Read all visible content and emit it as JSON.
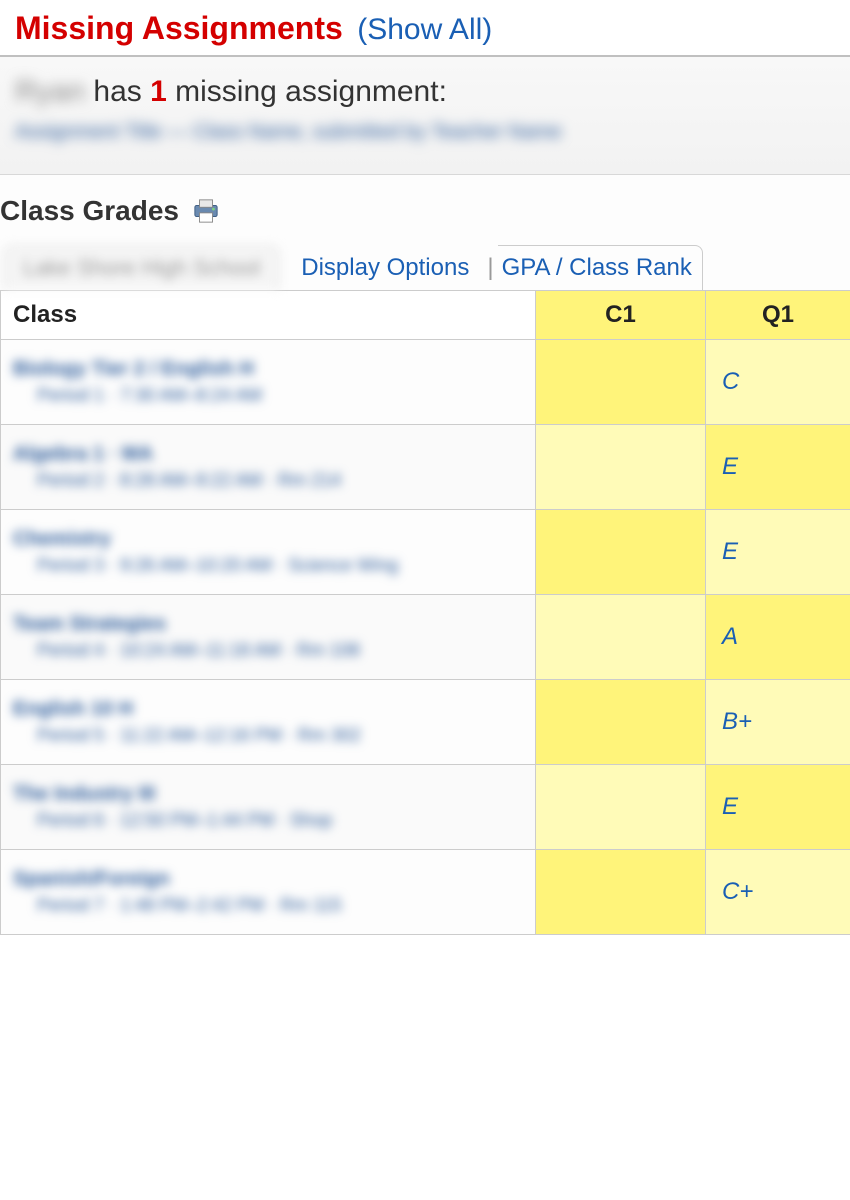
{
  "colors": {
    "red": "#d40000",
    "link_blue": "#1a5fb4",
    "highlight_yellow_dark": "#fff47a",
    "highlight_yellow_light": "#fffbb8",
    "border_gray": "#cccccc",
    "text_dark": "#333333"
  },
  "missing": {
    "title": "Missing Assignments",
    "show_all": "(Show All)",
    "student_blur": "Ryan",
    "has_text_pre": " has ",
    "count": "1",
    "has_text_post": " missing assignment:",
    "detail_blur": "Assignment Title — Class Name, submitted by Teacher Name"
  },
  "class_grades": {
    "header": "Class Grades",
    "tab_blur": "Lake Shore High School",
    "display_options": "Display Options",
    "separator": "|",
    "gpa_link": "GPA / Class Rank"
  },
  "table": {
    "headers": {
      "class": "Class",
      "c1": "C1",
      "q1": "Q1"
    },
    "rows": [
      {
        "class_name": "Biology Tier 2 / English H",
        "meta": "Period 1 · 7:30 AM–8:24 AM",
        "c1": "",
        "q1": "C"
      },
      {
        "class_name": "Algebra 1 · MA",
        "meta": "Period 2 · 8:28 AM–9:22 AM · Rm 214",
        "c1": "",
        "q1": "E"
      },
      {
        "class_name": "Chemistry",
        "meta": "Period 3 · 9:26 AM–10:20 AM · Science Wing",
        "c1": "",
        "q1": "E"
      },
      {
        "class_name": "Team Strategies",
        "meta": "Period 4 · 10:24 AM–11:18 AM · Rm 108",
        "c1": "",
        "q1": "A"
      },
      {
        "class_name": "English 10 H",
        "meta": "Period 5 · 11:22 AM–12:16 PM · Rm 302",
        "c1": "",
        "q1": "B+"
      },
      {
        "class_name": "The Industry III",
        "meta": "Period 6 · 12:50 PM–1:44 PM · Shop",
        "c1": "",
        "q1": "E"
      },
      {
        "class_name": "Spanish/Foreign",
        "meta": "Period 7 · 1:48 PM–2:42 PM · Rm 115",
        "c1": "",
        "q1": "C+"
      }
    ]
  }
}
